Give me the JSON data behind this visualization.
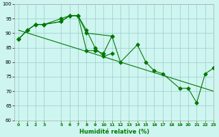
{
  "series1_x": [
    0,
    1,
    2,
    3,
    5,
    6,
    7,
    8,
    11
  ],
  "series1_y": [
    88,
    91,
    93,
    93,
    94,
    96,
    96,
    90,
    89
  ],
  "series2_x": [
    0,
    1,
    2,
    3,
    5,
    6,
    7,
    8,
    9,
    10,
    11,
    12,
    14,
    15,
    16,
    17,
    19,
    20,
    21,
    22,
    23
  ],
  "series2_y": [
    88,
    91,
    93,
    93,
    94,
    96,
    96,
    84,
    84,
    83,
    89,
    80,
    86,
    80,
    77,
    76,
    71,
    71,
    66,
    76,
    78
  ],
  "series3_x": [
    0,
    1,
    2,
    3,
    5,
    6,
    7,
    8,
    9,
    10,
    11
  ],
  "series3_y": [
    88,
    91,
    93,
    93,
    95,
    96,
    96,
    91,
    85,
    82,
    83
  ],
  "trend_x": [
    0,
    23
  ],
  "trend_y": [
    91,
    70
  ],
  "line_color": "#007700",
  "bg_color": "#cef5f0",
  "grid_color": "#99cccc",
  "xlabel": "Humidité relative (%)",
  "ylim": [
    60,
    100
  ],
  "xlim": [
    -0.5,
    23
  ],
  "yticks": [
    60,
    65,
    70,
    75,
    80,
    85,
    90,
    95,
    100
  ],
  "xticks": [
    0,
    1,
    2,
    3,
    5,
    6,
    7,
    8,
    9,
    10,
    11,
    12,
    13,
    14,
    15,
    16,
    17,
    18,
    19,
    20,
    21,
    22,
    23
  ]
}
